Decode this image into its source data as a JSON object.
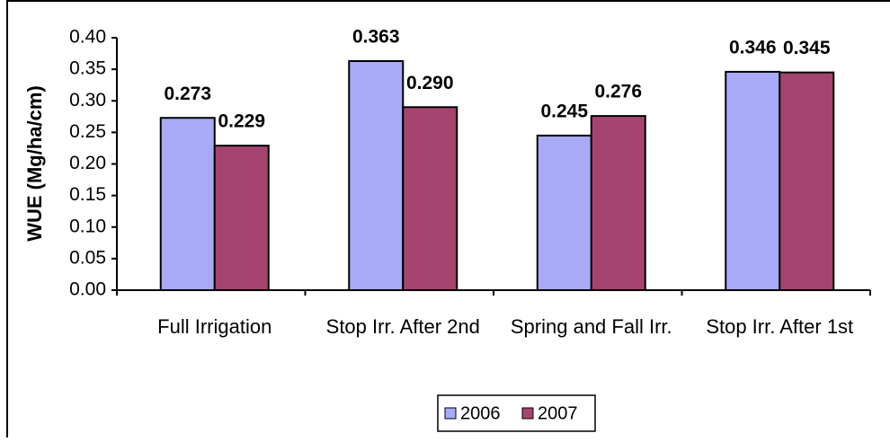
{
  "chart_data": {
    "type": "bar",
    "y_label": "WUE (Mg/ha/cm)",
    "categories": [
      "Full Irrigation",
      "Stop Irr. After 2nd",
      "Spring and Fall Irr.",
      "Stop Irr. After 1st"
    ],
    "series": [
      {
        "name": "2006",
        "color": "#a8aaf8",
        "values": [
          0.273,
          0.363,
          0.245,
          0.346
        ],
        "value_labels": [
          "0.273",
          "0.363",
          "0.245",
          "0.346"
        ]
      },
      {
        "name": "2007",
        "color": "#a64470",
        "values": [
          0.229,
          0.29,
          0.276,
          0.345
        ],
        "value_labels": [
          "0.229",
          "0.290",
          "0.276",
          "0.345"
        ]
      }
    ],
    "ylim": [
      0,
      0.4
    ],
    "yticks": [
      {
        "value": 0,
        "label": "0.00"
      },
      0.05,
      {
        "value": 0.1,
        "label": "0.10"
      },
      0.15,
      {
        "value": 0.2,
        "label": "0.20"
      },
      0.25,
      {
        "value": 0.3,
        "label": "0.30"
      },
      0.35,
      {
        "value": 0.4,
        "label": "0.40"
      }
    ],
    "legend": "bottom"
  }
}
